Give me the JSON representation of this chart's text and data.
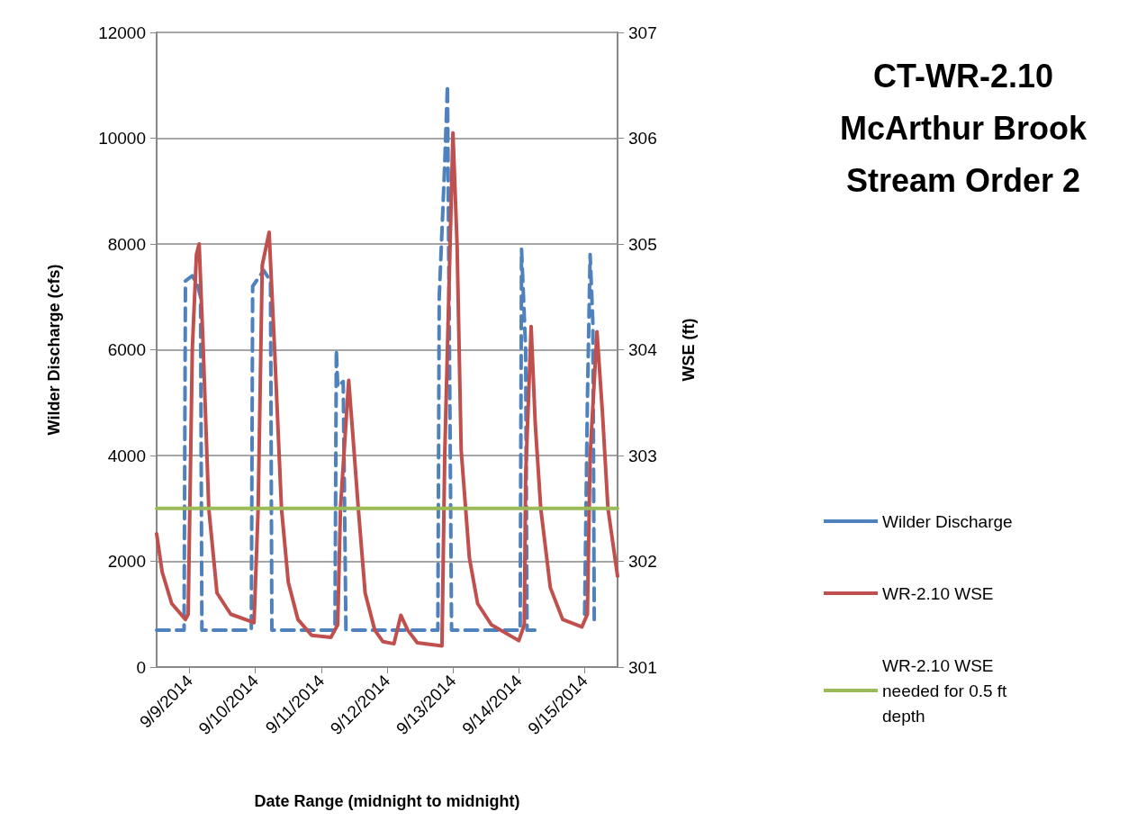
{
  "chart_data": {
    "type": "line",
    "title": "CT-WR-2.10\nMcArthur Brook\nStream Order 2",
    "xlabel": "Date Range (midnight to midnight)",
    "ylabel": "Wilder Discharge (cfs)",
    "y2label": "WSE (ft)",
    "xlim": [
      "2014-09-08T12:00",
      "2014-09-15T12:00"
    ],
    "xticks": [
      {
        "value": "2014-09-09",
        "label": "9/9/2014"
      },
      {
        "value": "2014-09-10",
        "label": "9/10/2014"
      },
      {
        "value": "2014-09-11",
        "label": "9/11/2014"
      },
      {
        "value": "2014-09-12",
        "label": "9/12/2014"
      },
      {
        "value": "2014-09-13",
        "label": "9/13/2014"
      },
      {
        "value": "2014-09-14",
        "label": "9/14/2014"
      },
      {
        "value": "2014-09-15",
        "label": "9/15/2014"
      }
    ],
    "ylim": [
      0,
      12000
    ],
    "yticks": [
      0,
      2000,
      4000,
      6000,
      8000,
      10000,
      12000
    ],
    "y2lim": [
      301,
      307
    ],
    "y2ticks": [
      301,
      302,
      303,
      304,
      305,
      306,
      307
    ],
    "grid": "y",
    "legend": "right",
    "marker": "none",
    "series": [
      {
        "name": "Wilder Discharge",
        "color": "#4f81bd",
        "line_style": "dashed",
        "x": [
          "2014-09-08T12:00",
          "2014-09-08T22:00",
          "2014-09-08T22:30",
          "2014-09-09T01:00",
          "2014-09-09T03:00",
          "2014-09-09T04:00",
          "2014-09-09T04:30",
          "2014-09-09T22:30",
          "2014-09-09T23:00",
          "2014-09-10T03:00",
          "2014-09-10T05:30",
          "2014-09-10T06:00",
          "2014-09-11T05:00",
          "2014-09-11T05:30",
          "2014-09-11T06:00",
          "2014-09-11T08:00",
          "2014-09-11T09:00",
          "2014-09-12T18:30",
          "2014-09-12T19:00",
          "2014-09-12T21:00",
          "2014-09-12T22:00",
          "2014-09-12T23:30",
          "2014-09-14T00:30",
          "2014-09-14T01:00",
          "2014-09-14T02:30",
          "2014-09-14T03:00",
          "2014-09-14T06:00",
          "2014-09-14T12:00",
          "2014-09-15T00:00",
          "2014-09-15T01:00",
          "2014-09-15T02:00",
          "2014-09-15T03:00",
          "2014-09-15T03:30"
        ],
        "values": [
          700,
          700,
          7300,
          7400,
          7200,
          7000,
          700,
          700,
          7200,
          7500,
          7300,
          700,
          700,
          6000,
          5300,
          5400,
          700,
          700,
          7000,
          9500,
          11000,
          700,
          700,
          7900,
          6000,
          700,
          700,
          null,
          1000,
          5000,
          7800,
          6500,
          900
        ]
      },
      {
        "name": "WR-2.10 WSE",
        "color": "#c0504d",
        "axis": "y2",
        "line_style": "solid",
        "x": [
          "2014-09-08T12:00",
          "2014-09-08T14:00",
          "2014-09-08T17:30",
          "2014-09-08T22:30",
          "2014-09-08T23:30",
          "2014-09-09T01:00",
          "2014-09-09T02:30",
          "2014-09-09T03:30",
          "2014-09-09T05:00",
          "2014-09-09T07:00",
          "2014-09-09T10:00",
          "2014-09-09T15:00",
          "2014-09-09T23:30",
          "2014-09-10T01:00",
          "2014-09-10T02:30",
          "2014-09-10T05:00",
          "2014-09-10T07:00",
          "2014-09-10T09:30",
          "2014-09-10T12:00",
          "2014-09-10T15:30",
          "2014-09-10T20:30",
          "2014-09-11T03:30",
          "2014-09-11T06:00",
          "2014-09-11T07:00",
          "2014-09-11T10:00",
          "2014-09-11T11:30",
          "2014-09-11T13:30",
          "2014-09-11T16:00",
          "2014-09-11T19:30",
          "2014-09-11T22:30",
          "2014-09-12T02:30",
          "2014-09-12T05:00",
          "2014-09-12T07:30",
          "2014-09-12T11:00",
          "2014-09-12T20:00",
          "2014-09-12T21:00",
          "2014-09-13T00:00",
          "2014-09-13T01:30",
          "2014-09-13T03:00",
          "2014-09-13T06:00",
          "2014-09-13T09:00",
          "2014-09-13T14:00",
          "2014-09-14T00:00",
          "2014-09-14T02:00",
          "2014-09-14T02:30",
          "2014-09-14T04:30",
          "2014-09-14T06:00",
          "2014-09-14T08:00",
          "2014-09-14T11:30",
          "2014-09-14T16:00",
          "2014-09-14T23:00",
          "2014-09-15T01:00",
          "2014-09-15T02:00",
          "2014-09-15T04:30",
          "2014-09-15T06:30",
          "2014-09-15T08:30",
          "2014-09-15T12:00"
        ],
        "values": [
          302.26,
          301.9,
          301.6,
          301.45,
          301.5,
          304.0,
          304.9,
          305.0,
          304.0,
          302.5,
          301.7,
          301.5,
          301.42,
          302.5,
          304.8,
          305.11,
          304.0,
          302.5,
          301.8,
          301.45,
          301.3,
          301.28,
          301.4,
          302.5,
          303.71,
          303.2,
          302.5,
          301.7,
          301.35,
          301.24,
          301.22,
          301.49,
          301.35,
          301.23,
          301.2,
          303.0,
          306.05,
          305.0,
          303.05,
          302.03,
          301.6,
          301.4,
          301.25,
          301.4,
          302.8,
          304.22,
          303.3,
          302.5,
          301.75,
          301.45,
          301.38,
          301.5,
          303.0,
          304.17,
          303.4,
          302.5,
          301.86
        ]
      },
      {
        "name": "WR-2.10 WSE needed for 0.5 ft depth",
        "color": "#9bbb59",
        "axis": "y2",
        "line_style": "solid",
        "x": [
          "2014-09-08T12:00",
          "2014-09-15T12:00"
        ],
        "values": [
          302.5,
          302.5
        ]
      }
    ]
  }
}
